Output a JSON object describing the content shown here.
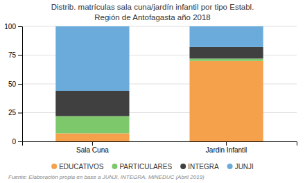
{
  "chart_data": {
    "type": "bar",
    "stacked": true,
    "title": "Distrib. matrículas sala cuna/jardín infantil por tipo Establ.",
    "subtitle": "Región de Antofagasta año 2018",
    "categories": [
      "Sala Cuna",
      "Jardin Infantil"
    ],
    "series": [
      {
        "name": "EDUCATIVOS",
        "color": "#f5a04a",
        "values": [
          7,
          70
        ]
      },
      {
        "name": "PARTICULARES",
        "color": "#7dc86b",
        "values": [
          15,
          2
        ]
      },
      {
        "name": "INTEGRA",
        "color": "#404040",
        "values": [
          22,
          10
        ]
      },
      {
        "name": "JUNJI",
        "color": "#6aabdc",
        "values": [
          56,
          18
        ]
      }
    ],
    "ylim": [
      0,
      100
    ],
    "yticks": [
      0,
      25,
      50,
      75,
      100
    ],
    "grid": true,
    "legend": "bottom",
    "annotations": [
      "Fuente: Elaboración propia en base a JUNJI, INTEGRA, MINEDUC (Abril 2019)"
    ]
  }
}
